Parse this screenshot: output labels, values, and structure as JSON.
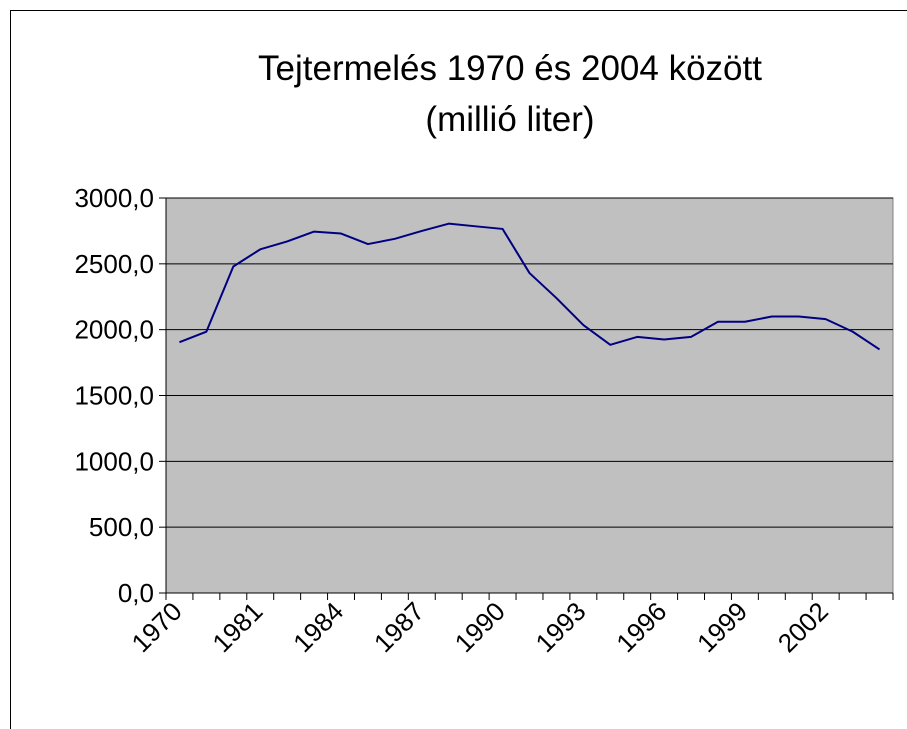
{
  "chart_data": {
    "type": "line",
    "title": "Tejtermelés 1970 és 2004 között",
    "subtitle": "(millió liter)",
    "categories": [
      "1970",
      null,
      null,
      "1981",
      null,
      null,
      "1984",
      null,
      null,
      "1987",
      null,
      null,
      "1990",
      null,
      null,
      "1993",
      null,
      null,
      "1996",
      null,
      null,
      "1999",
      null,
      null,
      "2002",
      null,
      null
    ],
    "series": [
      {
        "name": "Tejtermelés",
        "color": "#000080",
        "values": [
          1905,
          1985,
          2480,
          2610,
          2670,
          2745,
          2730,
          2650,
          2690,
          2750,
          2805,
          2785,
          2765,
          2430,
          2240,
          2035,
          1885,
          1945,
          1925,
          1945,
          2060,
          2060,
          2100,
          2100,
          2080,
          1985,
          1850
        ]
      }
    ],
    "ylim": [
      0,
      3000
    ],
    "yticks": [
      {
        "value": 0,
        "label": "0,0"
      },
      {
        "value": 500,
        "label": "500,0"
      },
      {
        "value": 1000,
        "label": "1000,0"
      },
      {
        "value": 1500,
        "label": "1500,0"
      },
      {
        "value": 2000,
        "label": "2000,0"
      },
      {
        "value": 2500,
        "label": "2500,0"
      },
      {
        "value": 3000,
        "label": "3000,0"
      }
    ],
    "grid": true,
    "plot_background": "#c0c0c0"
  }
}
